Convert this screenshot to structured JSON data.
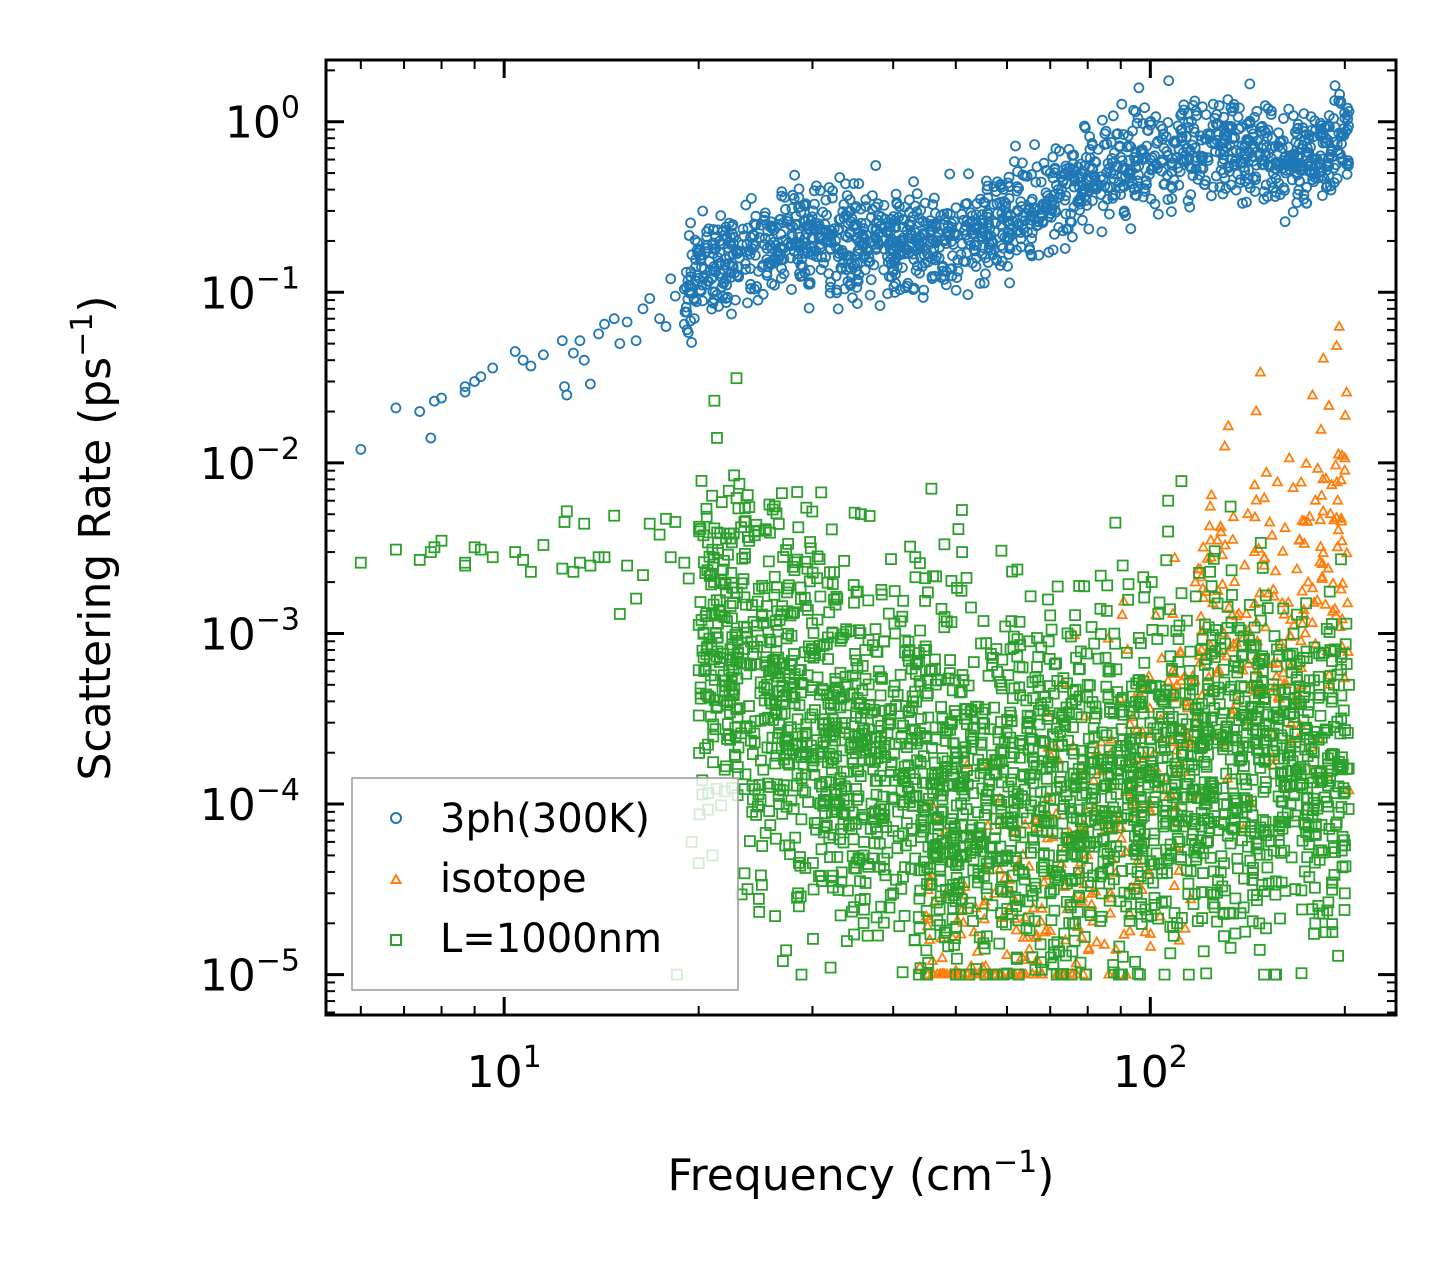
{
  "chart_data": {
    "type": "scatter",
    "title": "",
    "xlabel": "Frequency (cm",
    "xlabel_sup": "−1",
    "xlabel_end": ")",
    "ylabel": "Scattering Rate (ps",
    "ylabel_sup": "−1",
    "ylabel_end": ")",
    "xscale": "log",
    "yscale": "log",
    "xlim": [
      5.3,
      240
    ],
    "ylim": [
      5.8e-06,
      2.3
    ],
    "x_ticks": [
      {
        "base": "10",
        "exp": "1",
        "value": 10
      },
      {
        "base": "10",
        "exp": "2",
        "value": 100
      }
    ],
    "y_ticks": [
      {
        "base": "10",
        "exp": "0",
        "value": 1
      },
      {
        "base": "10",
        "exp": "−1",
        "value": 0.1
      },
      {
        "base": "10",
        "exp": "−2",
        "value": 0.01
      },
      {
        "base": "10",
        "exp": "−3",
        "value": 0.001
      },
      {
        "base": "10",
        "exp": "−4",
        "value": 0.0001
      },
      {
        "base": "10",
        "exp": "−5",
        "value": 1e-05
      }
    ],
    "legend_position": "lower-left",
    "series": [
      {
        "name": "3ph(300K)",
        "marker": "circle",
        "color": "#1f77b4",
        "points": [
          [
            6.0,
            0.012
          ],
          [
            6.8,
            0.021
          ],
          [
            7.4,
            0.02
          ],
          [
            7.7,
            0.014
          ],
          [
            7.8,
            0.023
          ],
          [
            8.0,
            0.024
          ],
          [
            8.7,
            0.028
          ],
          [
            8.7,
            0.026
          ],
          [
            9.0,
            0.03
          ],
          [
            9.2,
            0.032
          ],
          [
            9.6,
            0.036
          ],
          [
            10.4,
            0.045
          ],
          [
            10.7,
            0.04
          ],
          [
            11.0,
            0.037
          ],
          [
            11.5,
            0.043
          ],
          [
            12.3,
            0.052
          ],
          [
            12.4,
            0.028
          ],
          [
            12.5,
            0.025
          ],
          [
            12.8,
            0.044
          ],
          [
            13.1,
            0.052
          ],
          [
            13.3,
            0.04
          ],
          [
            13.6,
            0.029
          ],
          [
            14.0,
            0.057
          ],
          [
            14.3,
            0.065
          ],
          [
            14.8,
            0.07
          ],
          [
            15.1,
            0.05
          ],
          [
            15.5,
            0.067
          ],
          [
            16.0,
            0.052
          ],
          [
            16.4,
            0.08
          ],
          [
            16.8,
            0.092
          ],
          [
            17.4,
            0.07
          ],
          [
            17.8,
            0.063
          ],
          [
            18.1,
            0.12
          ],
          [
            18.4,
            0.095
          ],
          [
            19.0,
            0.065
          ],
          [
            19.3,
            0.11
          ],
          [
            20.2,
            0.14
          ],
          [
            21.4,
            0.16
          ],
          [
            22.4,
            0.13
          ],
          [
            22.8,
            0.09
          ],
          [
            23.0,
            0.17
          ],
          [
            24.2,
            0.18
          ],
          [
            25.5,
            0.13
          ],
          [
            26.2,
            0.11
          ],
          [
            27.0,
            0.2
          ],
          [
            28.5,
            0.22
          ],
          [
            29.0,
            0.14
          ],
          [
            30.0,
            0.21
          ],
          [
            32.0,
            0.18
          ],
          [
            34.0,
            0.21
          ],
          [
            36.0,
            0.16
          ],
          [
            38.0,
            0.22
          ],
          [
            40.0,
            0.18
          ],
          [
            42.0,
            0.23
          ],
          [
            44.0,
            0.19
          ],
          [
            46.0,
            0.25
          ],
          [
            48.0,
            0.2
          ],
          [
            50.0,
            0.22
          ],
          [
            52.0,
            0.17
          ],
          [
            54.0,
            0.25
          ],
          [
            56.0,
            0.42
          ],
          [
            58.0,
            0.29
          ],
          [
            60.0,
            0.26
          ],
          [
            63.0,
            0.34
          ],
          [
            66.0,
            0.31
          ],
          [
            68.0,
            0.28
          ],
          [
            70.0,
            0.5
          ],
          [
            72.0,
            0.4
          ],
          [
            74.0,
            0.55
          ],
          [
            78.0,
            0.5
          ],
          [
            82.0,
            0.48
          ],
          [
            86.0,
            0.57
          ],
          [
            90.0,
            0.62
          ],
          [
            95.0,
            0.66
          ],
          [
            100.0,
            0.6
          ],
          [
            105.0,
            0.7
          ],
          [
            110.0,
            0.62
          ],
          [
            115.0,
            0.55
          ],
          [
            120.0,
            0.78
          ],
          [
            122.0,
            1.1
          ],
          [
            125.0,
            0.95
          ],
          [
            130.0,
            0.75
          ],
          [
            135.0,
            0.8
          ],
          [
            140.0,
            0.65
          ],
          [
            145.0,
            0.7
          ],
          [
            150.0,
            0.56
          ],
          [
            155.0,
            0.5
          ],
          [
            160.0,
            0.7
          ],
          [
            165.0,
            0.62
          ],
          [
            170.0,
            0.45
          ],
          [
            175.0,
            0.7
          ],
          [
            180.0,
            0.55
          ],
          [
            185.0,
            0.75
          ],
          [
            190.0,
            0.42
          ],
          [
            195.0,
            0.68
          ],
          [
            200.0,
            1.05
          ],
          [
            202.0,
            1.2
          ],
          [
            203.0,
            1.15
          ]
        ],
        "trend": [
          [
            19.0,
            0.11
          ],
          [
            22.0,
            0.15
          ],
          [
            27.0,
            0.2
          ],
          [
            40.0,
            0.2
          ],
          [
            55.0,
            0.21
          ],
          [
            65.0,
            0.3
          ],
          [
            80.0,
            0.47
          ],
          [
            100.0,
            0.62
          ],
          [
            120.0,
            0.75
          ],
          [
            140.0,
            0.72
          ],
          [
            170.0,
            0.58
          ],
          [
            203.0,
            0.8
          ]
        ],
        "trend_spread": 0.15
      },
      {
        "name": "isotope",
        "marker": "triangle",
        "color": "#ff7f0e",
        "points": [
          [
            44.0,
            1.1e-05
          ],
          [
            46.0,
            1.2e-05
          ],
          [
            50.0,
            1.05e-05
          ],
          [
            55.0,
            1.1e-05
          ],
          [
            60.0,
            1.3e-05
          ],
          [
            65.0,
            1.4e-05
          ],
          [
            70.0,
            1.8e-05
          ],
          [
            80.0,
            5e-05
          ],
          [
            90.0,
            8e-05
          ],
          [
            100.0,
            0.0001
          ],
          [
            110.0,
            0.00015
          ],
          [
            120.0,
            0.0008
          ],
          [
            125.0,
            0.0015
          ],
          [
            127.0,
            0.0035
          ],
          [
            130.0,
            0.001
          ],
          [
            135.0,
            0.002
          ],
          [
            140.0,
            0.0025
          ],
          [
            145.0,
            0.003
          ],
          [
            150.0,
            0.0025
          ],
          [
            155.0,
            0.0018
          ],
          [
            160.0,
            0.0015
          ],
          [
            165.0,
            0.0012
          ],
          [
            170.0,
            0.0035
          ],
          [
            175.0,
            0.0045
          ],
          [
            180.0,
            0.006
          ],
          [
            185.0,
            0.008
          ],
          [
            190.0,
            0.005
          ],
          [
            195.0,
            0.006
          ],
          [
            198.0,
            0.011
          ],
          [
            200.0,
            0.009
          ],
          [
            202.0,
            0.0015
          ],
          [
            203.0,
            0.00012
          ]
        ],
        "trend": [
          [
            45.0,
            1.1e-05
          ],
          [
            60.0,
            1.2e-05
          ],
          [
            80.0,
            4e-05
          ],
          [
            110.0,
            0.0002
          ],
          [
            120.0,
            0.0008
          ],
          [
            140.0,
            0.0018
          ],
          [
            165.0,
            0.0015
          ],
          [
            185.0,
            0.004
          ],
          [
            203.0,
            0.003
          ]
        ],
        "trend_spread": 0.55
      },
      {
        "name": "L=1000nm",
        "marker": "square",
        "color": "#2ca02c",
        "points": [
          [
            6.0,
            0.0026
          ],
          [
            6.8,
            0.0031
          ],
          [
            7.4,
            0.0027
          ],
          [
            7.7,
            0.003
          ],
          [
            7.8,
            0.0032
          ],
          [
            8.0,
            0.0035
          ],
          [
            8.7,
            0.0026
          ],
          [
            8.7,
            0.0025
          ],
          [
            9.0,
            0.0032
          ],
          [
            9.2,
            0.0031
          ],
          [
            9.6,
            0.0028
          ],
          [
            10.4,
            0.003
          ],
          [
            10.7,
            0.0027
          ],
          [
            11.0,
            0.0023
          ],
          [
            11.5,
            0.0033
          ],
          [
            12.3,
            0.0024
          ],
          [
            12.4,
            0.0045
          ],
          [
            12.5,
            0.0052
          ],
          [
            12.8,
            0.0023
          ],
          [
            13.1,
            0.0026
          ],
          [
            13.3,
            0.0044
          ],
          [
            13.6,
            0.0025
          ],
          [
            14.0,
            0.0028
          ],
          [
            14.3,
            0.0028
          ],
          [
            14.8,
            0.0049
          ],
          [
            15.1,
            0.0013
          ],
          [
            15.5,
            0.0025
          ],
          [
            16.0,
            0.0016
          ],
          [
            16.4,
            0.0022
          ],
          [
            16.8,
            0.0044
          ],
          [
            17.4,
            0.0038
          ],
          [
            17.8,
            0.0047
          ],
          [
            18.1,
            0.0028
          ],
          [
            18.4,
            0.0045
          ],
          [
            19.0,
            0.0026
          ],
          [
            19.3,
            0.0021
          ],
          [
            18.5,
            1e-05
          ],
          [
            19.5,
            6e-05
          ],
          [
            20.2,
            0.0012
          ],
          [
            21.4,
            0.00095
          ],
          [
            22.4,
            0.0036
          ],
          [
            22.8,
            0.00098
          ],
          [
            21.0,
            5e-05
          ],
          [
            20.0,
            4.5e-05
          ],
          [
            23.0,
            0.00015
          ],
          [
            24.2,
            9e-05
          ],
          [
            25.5,
            0.0005
          ],
          [
            26.2,
            0.0007
          ],
          [
            27.0,
            1.2e-05
          ],
          [
            28.5,
            3e-05
          ],
          [
            30.0,
            0.0008
          ],
          [
            32.0,
            1.1e-05
          ],
          [
            34.0,
            0.0005
          ],
          [
            36.0,
            0.0002
          ],
          [
            38.0,
            0.0006
          ],
          [
            40.0,
            3e-05
          ],
          [
            45.0,
            0.0008
          ],
          [
            50.0,
            1e-05
          ],
          [
            55.0,
            0.0003
          ],
          [
            60.0,
            5e-05
          ],
          [
            65.0,
            0.0009
          ],
          [
            70.0,
            3e-05
          ],
          [
            80.0,
            0.0005
          ],
          [
            90.0,
            1e-05
          ],
          [
            100.0,
            0.0003
          ],
          [
            110.0,
            2e-05
          ],
          [
            120.0,
            0.0008
          ],
          [
            130.0,
            0.0001
          ],
          [
            140.0,
            0.0004
          ],
          [
            150.0,
            1e-05
          ],
          [
            160.0,
            0.00015
          ],
          [
            170.0,
            0.0004
          ],
          [
            180.0,
            2e-05
          ],
          [
            190.0,
            0.0008
          ],
          [
            200.0,
            3e-05
          ],
          [
            203.0,
            0.0005
          ]
        ],
        "trend": [
          [
            20.0,
            0.0012
          ],
          [
            22.0,
            0.0009
          ],
          [
            25.0,
            0.0005
          ],
          [
            30.0,
            0.0003
          ],
          [
            40.0,
            0.00018
          ],
          [
            55.0,
            0.00013
          ],
          [
            75.0,
            0.00012
          ],
          [
            100.0,
            0.00015
          ],
          [
            140.0,
            0.00018
          ],
          [
            203.0,
            0.00015
          ]
        ],
        "trend_spread": 0.55
      }
    ]
  }
}
